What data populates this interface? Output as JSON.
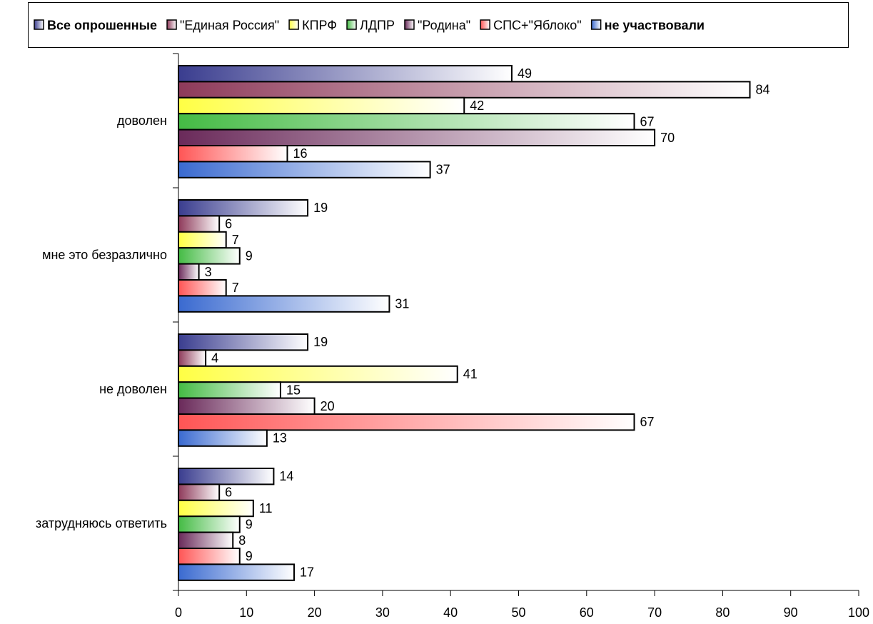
{
  "chart_data": {
    "type": "bar",
    "orientation": "horizontal",
    "categories": [
      "доволен",
      "мне это безразлично",
      "не доволен",
      "затрудняюсь ответить"
    ],
    "series": [
      {
        "name": "Все опрошенные",
        "values": [
          49,
          19,
          19,
          14
        ],
        "color": "#3a3d8f",
        "bold": true
      },
      {
        "name": "\"Единая Россия\"",
        "values": [
          84,
          6,
          4,
          6
        ],
        "color": "#8e3a5a",
        "bold": false
      },
      {
        "name": "КПРФ",
        "values": [
          42,
          7,
          41,
          11
        ],
        "color": "#ffff44",
        "bold": false
      },
      {
        "name": "ЛДПР",
        "values": [
          67,
          9,
          15,
          9
        ],
        "color": "#44bb44",
        "bold": false
      },
      {
        "name": "\"Родина\"",
        "values": [
          70,
          3,
          20,
          8
        ],
        "color": "#6a2a5a",
        "bold": false
      },
      {
        "name": "СПС+\"Яблоко\"",
        "values": [
          16,
          7,
          67,
          9
        ],
        "color": "#ff5555",
        "bold": false
      },
      {
        "name": "не участвовали",
        "values": [
          37,
          31,
          13,
          17
        ],
        "color": "#3a6ad0",
        "bold": true
      }
    ],
    "xlim": [
      0,
      100
    ],
    "xticks": [
      0,
      10,
      20,
      30,
      40,
      50,
      60,
      70,
      80,
      90,
      100
    ],
    "legend": "top",
    "grid": false
  }
}
